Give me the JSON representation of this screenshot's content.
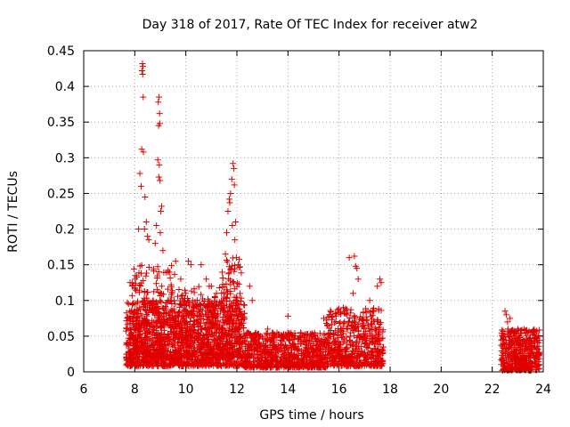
{
  "chart_data": {
    "type": "scatter",
    "title": "Day 318 of 2017, Rate Of TEC Index for receiver atw2",
    "xlabel": "GPS time / hours",
    "ylabel": "ROTI / TECUs",
    "xlim": [
      6,
      24
    ],
    "ylim": [
      0,
      0.45
    ],
    "xticks": [
      6,
      8,
      10,
      12,
      14,
      16,
      18,
      20,
      22,
      24
    ],
    "yticks": [
      0,
      0.05,
      0.1,
      0.15,
      0.2,
      0.25,
      0.3,
      0.35,
      0.4,
      0.45
    ],
    "xtick_labels": [
      "6",
      "8",
      "10",
      "12",
      "14",
      "16",
      "18",
      "20",
      "22",
      "24"
    ],
    "ytick_labels": [
      "0",
      "0.05",
      "0.1",
      "0.15",
      "0.2",
      "0.25",
      "0.3",
      "0.35",
      "0.4",
      "0.45"
    ],
    "grid": true,
    "marker": "+",
    "color": "#e00000",
    "series": [
      {
        "name": "ROTI",
        "points": [
          [
            8.3,
            0.432
          ],
          [
            8.32,
            0.428
          ],
          [
            8.28,
            0.422
          ],
          [
            8.31,
            0.417
          ],
          [
            8.33,
            0.385
          ],
          [
            8.27,
            0.312
          ],
          [
            8.34,
            0.308
          ],
          [
            8.2,
            0.278
          ],
          [
            8.25,
            0.26
          ],
          [
            8.4,
            0.245
          ],
          [
            8.45,
            0.21
          ],
          [
            8.38,
            0.2
          ],
          [
            8.15,
            0.2
          ],
          [
            8.5,
            0.19
          ],
          [
            8.55,
            0.185
          ],
          [
            8.95,
            0.385
          ],
          [
            8.92,
            0.378
          ],
          [
            8.97,
            0.362
          ],
          [
            8.98,
            0.348
          ],
          [
            8.93,
            0.345
          ],
          [
            8.9,
            0.297
          ],
          [
            8.96,
            0.29
          ],
          [
            8.94,
            0.273
          ],
          [
            8.99,
            0.268
          ],
          [
            9.05,
            0.232
          ],
          [
            9.02,
            0.225
          ],
          [
            8.85,
            0.205
          ],
          [
            9.0,
            0.195
          ],
          [
            8.8,
            0.18
          ],
          [
            9.1,
            0.17
          ],
          [
            11.85,
            0.292
          ],
          [
            11.88,
            0.285
          ],
          [
            11.8,
            0.27
          ],
          [
            11.9,
            0.262
          ],
          [
            11.75,
            0.25
          ],
          [
            11.7,
            0.242
          ],
          [
            11.72,
            0.237
          ],
          [
            11.65,
            0.225
          ],
          [
            11.95,
            0.21
          ],
          [
            11.82,
            0.205
          ],
          [
            11.6,
            0.195
          ],
          [
            11.92,
            0.185
          ],
          [
            11.55,
            0.165
          ],
          [
            11.98,
            0.16
          ],
          [
            12.05,
            0.15
          ],
          [
            9.6,
            0.155
          ],
          [
            9.8,
            0.13
          ],
          [
            10.1,
            0.155
          ],
          [
            10.2,
            0.15
          ],
          [
            10.6,
            0.15
          ],
          [
            10.8,
            0.13
          ],
          [
            11.0,
            0.12
          ],
          [
            11.2,
            0.11
          ],
          [
            12.5,
            0.12
          ],
          [
            12.6,
            0.1
          ],
          [
            16.4,
            0.16
          ],
          [
            16.6,
            0.162
          ],
          [
            16.65,
            0.148
          ],
          [
            16.7,
            0.145
          ],
          [
            16.75,
            0.13
          ],
          [
            17.6,
            0.13
          ],
          [
            17.65,
            0.125
          ],
          [
            17.5,
            0.12
          ],
          [
            16.55,
            0.11
          ],
          [
            17.2,
            0.1
          ],
          [
            14.0,
            0.078
          ],
          [
            15.4,
            0.075
          ],
          [
            15.5,
            0.068
          ],
          [
            13.2,
            0.06
          ],
          [
            14.5,
            0.055
          ],
          [
            22.5,
            0.085
          ],
          [
            22.55,
            0.08
          ],
          [
            22.7,
            0.075
          ],
          [
            22.6,
            0.07
          ],
          [
            23.0,
            0.06
          ],
          [
            23.3,
            0.058
          ],
          [
            23.6,
            0.055
          ],
          [
            23.75,
            0.05
          ],
          [
            23.1,
            0.045
          ],
          [
            23.5,
            0.04
          ]
        ],
        "clusters": [
          {
            "x": [
              7.65,
              12.3
            ],
            "y": [
              0.008,
              0.1
            ],
            "count": 1300
          },
          {
            "x": [
              7.8,
              9.6
            ],
            "y": [
              0.02,
              0.15
            ],
            "count": 260
          },
          {
            "x": [
              9.6,
              11.4
            ],
            "y": [
              0.02,
              0.12
            ],
            "count": 200
          },
          {
            "x": [
              11.4,
              12.2
            ],
            "y": [
              0.02,
              0.16
            ],
            "count": 160
          },
          {
            "x": [
              12.3,
              15.5
            ],
            "y": [
              0.006,
              0.055
            ],
            "count": 750
          },
          {
            "x": [
              15.5,
              17.75
            ],
            "y": [
              0.008,
              0.09
            ],
            "count": 550
          },
          {
            "x": [
              22.35,
              23.85
            ],
            "y": [
              0.002,
              0.06
            ],
            "count": 420
          }
        ]
      }
    ]
  }
}
